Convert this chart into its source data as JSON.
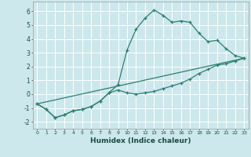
{
  "xlabel": "Humidex (Indice chaleur)",
  "bg_color": "#cce8ec",
  "grid_color": "#ffffff",
  "line_color": "#2e7d6e",
  "xlim": [
    -0.5,
    23.5
  ],
  "ylim": [
    -2.5,
    6.7
  ],
  "yticks": [
    -2,
    -1,
    0,
    1,
    2,
    3,
    4,
    5,
    6
  ],
  "xticks": [
    0,
    1,
    2,
    3,
    4,
    5,
    6,
    7,
    8,
    9,
    10,
    11,
    12,
    13,
    14,
    15,
    16,
    17,
    18,
    19,
    20,
    21,
    22,
    23
  ],
  "line1_x": [
    0,
    1,
    2,
    3,
    4,
    5,
    6,
    7,
    8,
    9,
    10,
    11,
    12,
    13,
    14,
    15,
    16,
    17,
    18,
    19,
    20,
    21,
    22,
    23
  ],
  "line1_y": [
    -0.7,
    -1.1,
    -1.7,
    -1.5,
    -1.2,
    -1.1,
    -0.9,
    -0.5,
    0.1,
    0.7,
    3.2,
    4.7,
    5.5,
    6.1,
    5.7,
    5.2,
    5.3,
    5.2,
    4.4,
    3.8,
    3.9,
    3.3,
    2.8,
    2.6
  ],
  "line2_x": [
    0,
    1,
    2,
    3,
    4,
    5,
    6,
    7,
    8,
    9,
    10,
    11,
    12,
    13,
    14,
    15,
    16,
    17,
    18,
    19,
    20,
    21,
    22,
    23
  ],
  "line2_y": [
    -0.7,
    -1.1,
    -1.7,
    -1.5,
    -1.2,
    -1.1,
    -0.9,
    -0.5,
    0.1,
    0.3,
    0.1,
    0.0,
    0.1,
    0.2,
    0.4,
    0.6,
    0.8,
    1.1,
    1.5,
    1.8,
    2.1,
    2.2,
    2.4,
    2.6
  ],
  "line3_x": [
    0,
    23
  ],
  "line3_y": [
    -0.7,
    2.6
  ]
}
